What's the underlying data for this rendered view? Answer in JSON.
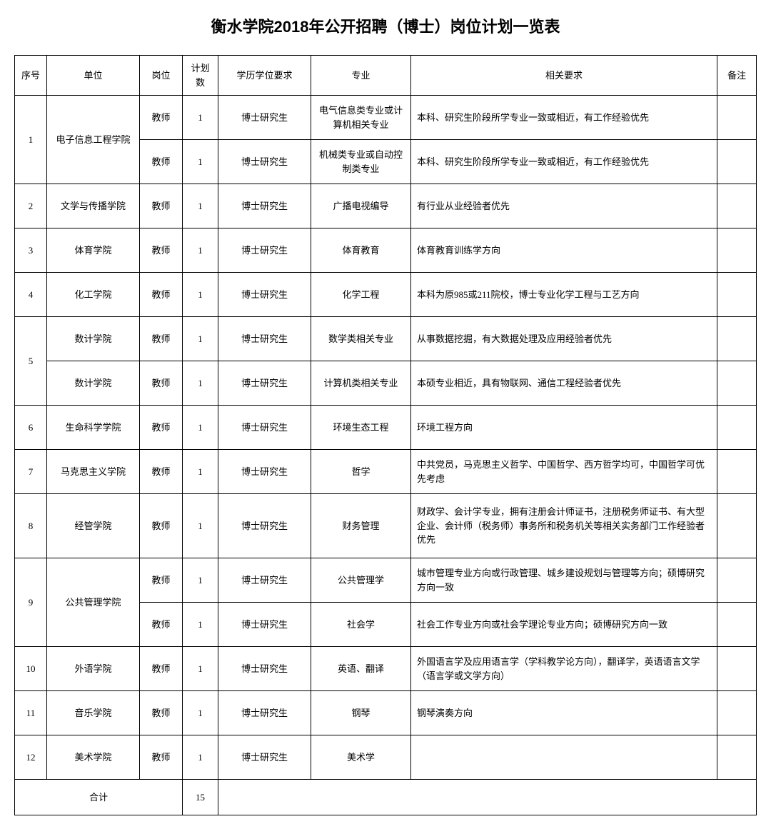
{
  "title": "衡水学院2018年公开招聘（博士）岗位计划一览表",
  "headers": {
    "seq": "序号",
    "unit": "单位",
    "position": "岗位",
    "planCount": "计划数",
    "education": "学历学位要求",
    "major": "专业",
    "requirement": "相关要求",
    "note": "备注"
  },
  "rows": [
    {
      "seq": "1",
      "unit": "电子信息工程学院",
      "subrows": [
        {
          "position": "教师",
          "planCount": "1",
          "education": "博士研究生",
          "major": "电气信息类专业或计算机相关专业",
          "requirement": "本科、研究生阶段所学专业一致或相近，有工作经验优先",
          "note": ""
        },
        {
          "position": "教师",
          "planCount": "1",
          "education": "博士研究生",
          "major": "机械类专业或自动控制类专业",
          "requirement": "本科、研究生阶段所学专业一致或相近，有工作经验优先",
          "note": ""
        }
      ]
    },
    {
      "seq": "2",
      "unit": "文学与传播学院",
      "subrows": [
        {
          "position": "教师",
          "planCount": "1",
          "education": "博士研究生",
          "major": "广播电视编导",
          "requirement": "有行业从业经验者优先",
          "note": ""
        }
      ]
    },
    {
      "seq": "3",
      "unit": "体育学院",
      "subrows": [
        {
          "position": "教师",
          "planCount": "1",
          "education": "博士研究生",
          "major": "体育教育",
          "requirement": "体育教育训练学方向",
          "note": ""
        }
      ]
    },
    {
      "seq": "4",
      "unit": "化工学院",
      "subrows": [
        {
          "position": "教师",
          "planCount": "1",
          "education": "博士研究生",
          "major": "化学工程",
          "requirement": "本科为原985或211院校，博士专业化学工程与工艺方向",
          "note": ""
        }
      ]
    },
    {
      "seq": "5",
      "unit": "数计学院",
      "unit2": "数计学院",
      "splitUnit": true,
      "subrows": [
        {
          "position": "教师",
          "planCount": "1",
          "education": "博士研究生",
          "major": "数学类相关专业",
          "requirement": "从事数据挖掘，有大数据处理及应用经验者优先",
          "note": ""
        },
        {
          "position": "教师",
          "planCount": "1",
          "education": "博士研究生",
          "major": "计算机类相关专业",
          "requirement": "本硕专业相近，具有物联网、通信工程经验者优先",
          "note": ""
        }
      ]
    },
    {
      "seq": "6",
      "unit": "生命科学学院",
      "subrows": [
        {
          "position": "教师",
          "planCount": "1",
          "education": "博士研究生",
          "major": "环境生态工程",
          "requirement": "环境工程方向",
          "note": ""
        }
      ]
    },
    {
      "seq": "7",
      "unit": "马克思主义学院",
      "subrows": [
        {
          "position": "教师",
          "planCount": "1",
          "education": "博士研究生",
          "major": "哲学",
          "requirement": "中共党员，马克思主义哲学、中国哲学、西方哲学均可，中国哲学可优先考虑",
          "note": ""
        }
      ]
    },
    {
      "seq": "8",
      "unit": "经管学院",
      "extraTall": true,
      "subrows": [
        {
          "position": "教师",
          "planCount": "1",
          "education": "博士研究生",
          "major": "财务管理",
          "requirement": "财政学、会计学专业，拥有注册会计师证书，注册税务师证书、有大型企业、会计师（税务师）事务所和税务机关等相关实务部门工作经验者优先",
          "note": ""
        }
      ]
    },
    {
      "seq": "9",
      "unit": "公共管理学院",
      "subrows": [
        {
          "position": "教师",
          "planCount": "1",
          "education": "博士研究生",
          "major": "公共管理学",
          "requirement": "城市管理专业方向或行政管理、城乡建设规划与管理等方向；硕博研究方向一致",
          "note": ""
        },
        {
          "position": "教师",
          "planCount": "1",
          "education": "博士研究生",
          "major": "社会学",
          "requirement": "社会工作专业方向或社会学理论专业方向；硕博研究方向一致",
          "note": ""
        }
      ]
    },
    {
      "seq": "10",
      "unit": "外语学院",
      "subrows": [
        {
          "position": "教师",
          "planCount": "1",
          "education": "博士研究生",
          "major": "英语、翻译",
          "requirement": "外国语言学及应用语言学（学科教学论方向），翻译学，英语语言文学（语言学或文学方向）",
          "note": ""
        }
      ]
    },
    {
      "seq": "11",
      "unit": "音乐学院",
      "subrows": [
        {
          "position": "教师",
          "planCount": "1",
          "education": "博士研究生",
          "major": "钢琴",
          "requirement": "钢琴演奏方向",
          "note": ""
        }
      ]
    },
    {
      "seq": "12",
      "unit": "美术学院",
      "subrows": [
        {
          "position": "教师",
          "planCount": "1",
          "education": "博士研究生",
          "major": "美术学",
          "requirement": "",
          "note": ""
        }
      ]
    }
  ],
  "total": {
    "label": "合计",
    "count": "15"
  }
}
